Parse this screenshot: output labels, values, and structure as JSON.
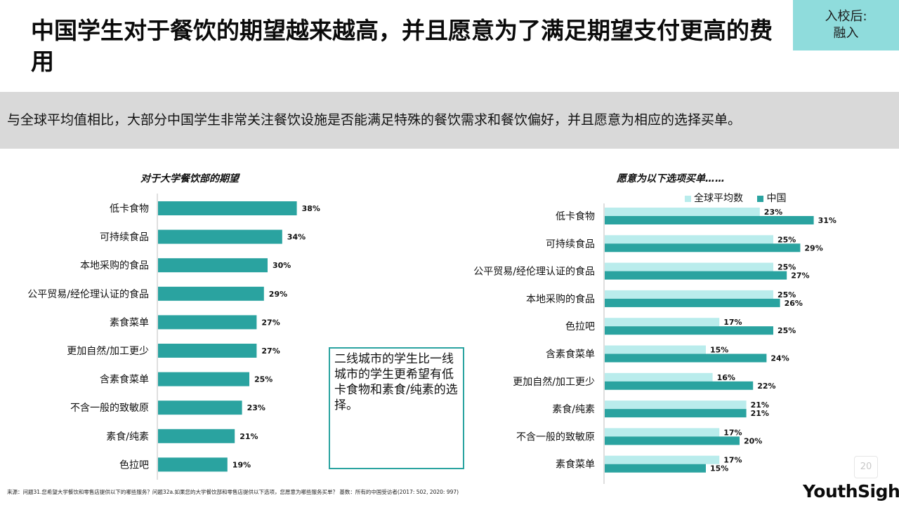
{
  "title": "中国学生对于餐饮的期望越来越高，并且愿意为了满足期望支付更高的费用",
  "tag": {
    "line1": "入校后:",
    "line2": "融入"
  },
  "subtitle": "与全球平均值相比，大部分中国学生非常关注餐饮设施是否能满足特殊的餐饮需求和餐饮偏好，并且愿意为相应的选择买单。",
  "callout": "二线城市的学生比一线城市的学生更希望有低卡食物和素食/纯素的选择。",
  "source": "来源：问题31.您希望大学餐饮和零售店提供以下的哪些服务？问题32a.如果您的大学餐饮部和零售店提供以下选项，您愿意为哪些服务买单？ 基数：所有的中国受访者(2017: 502, 2020: 997)",
  "page_number": "20",
  "logo": "YouthSight",
  "colors": {
    "teal": "#2aa3a0",
    "light_teal": "#b9ecec"
  },
  "chart_data": [
    {
      "type": "bar",
      "orientation": "horizontal",
      "title": "对于大学餐饮部的期望",
      "categories": [
        "低卡食物",
        "可持续食品",
        "本地采购的食品",
        "公平贸易/经伦理认证的食品",
        "素食菜单",
        "更加自然/加工更少",
        "含素食菜单",
        "不含一般的致敏原",
        "素食/纯素",
        "色拉吧"
      ],
      "values": [
        38,
        34,
        30,
        29,
        27,
        27,
        25,
        23,
        21,
        19
      ],
      "unit": "%",
      "xlim": [
        0,
        50
      ]
    },
    {
      "type": "bar",
      "orientation": "horizontal",
      "title": "愿意为以下选项买单……",
      "categories": [
        "低卡食物",
        "可持续食品",
        "公平贸易/经伦理认证的食品",
        "本地采购的食品",
        "色拉吧",
        "含素食菜单",
        "更加自然/加工更少",
        "素食/纯素",
        "不含一般的致敏原",
        "素食菜单"
      ],
      "series": [
        {
          "name": "全球平均数",
          "values": [
            23,
            25,
            25,
            25,
            17,
            15,
            16,
            21,
            17,
            17
          ]
        },
        {
          "name": "中国",
          "values": [
            31,
            29,
            27,
            26,
            25,
            24,
            22,
            21,
            20,
            15
          ]
        }
      ],
      "unit": "%",
      "xlim": [
        0,
        40
      ],
      "legend": "top-right"
    }
  ]
}
